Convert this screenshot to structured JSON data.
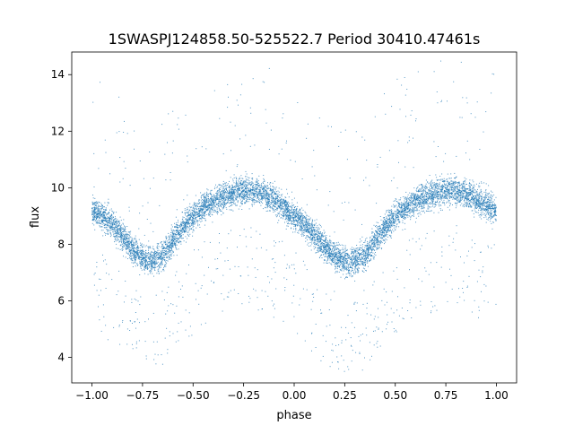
{
  "chart_data": {
    "type": "scatter",
    "title": "1SWASPJ124858.50-525522.7 Period 30410.47461s",
    "xlabel": "phase",
    "ylabel": "flux",
    "xlim": [
      -1.1,
      1.1
    ],
    "ylim": [
      3.1,
      14.8
    ],
    "xticks": [
      -1.0,
      -0.75,
      -0.5,
      -0.25,
      0.0,
      0.25,
      0.5,
      0.75,
      1.0
    ],
    "xtick_labels": [
      "−1.00",
      "−0.75",
      "−0.50",
      "−0.25",
      "0.00",
      "0.25",
      "0.50",
      "0.75",
      "1.00"
    ],
    "yticks": [
      4,
      6,
      8,
      10,
      12,
      14
    ],
    "ytick_labels": [
      "4",
      "6",
      "8",
      "10",
      "12",
      "14"
    ],
    "grid": false,
    "legend": "none",
    "marker_color": "#1f77b4",
    "series": [
      {
        "description_of_points": "dense phase-folded light curve, mirrored over two cycles",
        "x": [
          -1.0,
          -0.95,
          -0.9,
          -0.85,
          -0.8,
          -0.75,
          -0.7,
          -0.65,
          -0.6,
          -0.55,
          -0.5,
          -0.45,
          -0.4,
          -0.35,
          -0.3,
          -0.25,
          -0.2,
          -0.15,
          -0.1,
          -0.05,
          0.0,
          0.05,
          0.1,
          0.15,
          0.2,
          0.25,
          0.3,
          0.35,
          0.4,
          0.45,
          0.5,
          0.55,
          0.6,
          0.65,
          0.7,
          0.75,
          0.8,
          0.85,
          0.9,
          0.95,
          1.0
        ],
        "y": [
          9.2,
          9.0,
          8.7,
          8.3,
          7.8,
          7.5,
          7.4,
          7.6,
          8.1,
          8.6,
          9.0,
          9.3,
          9.5,
          9.7,
          9.8,
          9.9,
          9.9,
          9.8,
          9.6,
          9.3,
          9.0,
          8.7,
          8.3,
          7.9,
          7.6,
          7.4,
          7.4,
          7.6,
          8.1,
          8.6,
          9.0,
          9.3,
          9.5,
          9.7,
          9.8,
          9.9,
          9.9,
          9.8,
          9.6,
          9.4,
          9.2
        ]
      }
    ]
  }
}
